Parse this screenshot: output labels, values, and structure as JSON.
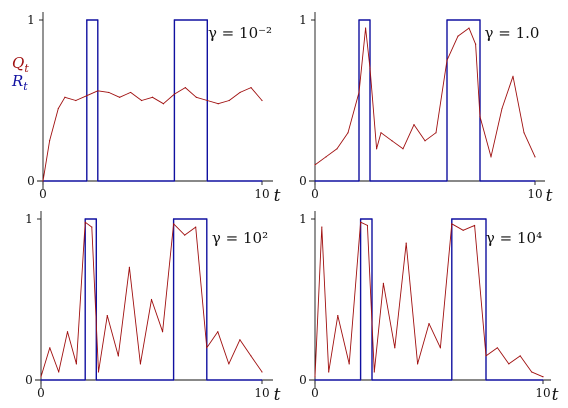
{
  "figure": {
    "legend": {
      "q_label": "Q",
      "q_sub": "t",
      "r_label": "R",
      "r_sub": "t"
    }
  },
  "colors": {
    "Q": "#a01010",
    "R": "#1010a0",
    "axis": "#111111"
  },
  "chart_data": [
    {
      "type": "line",
      "gamma_label": "γ = 10⁻²",
      "xlabel": "t",
      "xlim": [
        0,
        10
      ],
      "ylim": [
        0,
        1
      ],
      "x_ticks": [
        "0",
        "10"
      ],
      "y_ticks": [
        "0",
        "1"
      ],
      "series": [
        {
          "name": "R",
          "x": [
            0,
            2,
            2,
            2.5,
            2.5,
            6,
            6,
            7.5,
            7.5,
            10
          ],
          "y": [
            0,
            0,
            1,
            1,
            0,
            0,
            1,
            1,
            0,
            0
          ]
        },
        {
          "name": "Q",
          "x": [
            0,
            0.3,
            0.7,
            1,
            1.5,
            2,
            2.5,
            3,
            3.5,
            4,
            4.5,
            5,
            5.5,
            6,
            6.5,
            7,
            7.5,
            8,
            8.5,
            9,
            9.5,
            10
          ],
          "y": [
            0,
            0.25,
            0.45,
            0.52,
            0.5,
            0.53,
            0.56,
            0.55,
            0.52,
            0.55,
            0.5,
            0.52,
            0.48,
            0.54,
            0.58,
            0.52,
            0.5,
            0.48,
            0.5,
            0.55,
            0.58,
            0.5
          ]
        }
      ]
    },
    {
      "type": "line",
      "gamma_label": "γ = 1.0",
      "xlabel": "t",
      "xlim": [
        0,
        10
      ],
      "ylim": [
        0,
        1
      ],
      "x_ticks": [
        "0",
        "10"
      ],
      "y_ticks": [
        "0",
        "1"
      ],
      "series": [
        {
          "name": "R",
          "x": [
            0,
            2,
            2,
            2.5,
            2.5,
            6,
            6,
            7.5,
            7.5,
            10
          ],
          "y": [
            0,
            0,
            1,
            1,
            0,
            0,
            1,
            1,
            0,
            0
          ]
        },
        {
          "name": "Q",
          "x": [
            0,
            0.5,
            1,
            1.5,
            2,
            2.3,
            2.5,
            2.8,
            3,
            3.5,
            4,
            4.5,
            5,
            5.5,
            6,
            6.5,
            7,
            7.3,
            7.5,
            8,
            8.5,
            9,
            9.5,
            10
          ],
          "y": [
            0.1,
            0.15,
            0.2,
            0.3,
            0.55,
            0.95,
            0.7,
            0.2,
            0.3,
            0.25,
            0.2,
            0.35,
            0.25,
            0.3,
            0.75,
            0.9,
            0.95,
            0.85,
            0.4,
            0.15,
            0.45,
            0.65,
            0.3,
            0.15
          ]
        }
      ]
    },
    {
      "type": "line",
      "gamma_label": "γ = 10²",
      "xlabel": "t",
      "xlim": [
        0,
        10
      ],
      "ylim": [
        0,
        1
      ],
      "x_ticks": [
        "0",
        "10"
      ],
      "y_ticks": [
        "0",
        "1"
      ],
      "series": [
        {
          "name": "R",
          "x": [
            0,
            2,
            2,
            2.5,
            2.5,
            6,
            6,
            7.5,
            7.5,
            10
          ],
          "y": [
            0,
            0,
            1,
            1,
            0,
            0,
            1,
            1,
            0,
            0
          ]
        },
        {
          "name": "Q",
          "x": [
            0,
            0.4,
            0.8,
            1.2,
            1.6,
            2.0,
            2.3,
            2.6,
            3.0,
            3.5,
            4.0,
            4.5,
            5.0,
            5.5,
            6.0,
            6.5,
            7.0,
            7.5,
            8.0,
            8.5,
            9.0,
            9.5,
            10
          ],
          "y": [
            0.02,
            0.2,
            0.05,
            0.3,
            0.1,
            0.98,
            0.95,
            0.05,
            0.4,
            0.15,
            0.7,
            0.1,
            0.5,
            0.3,
            0.97,
            0.9,
            0.95,
            0.2,
            0.3,
            0.1,
            0.25,
            0.15,
            0.05
          ]
        }
      ]
    },
    {
      "type": "line",
      "gamma_label": "γ = 10⁴",
      "xlabel": "t",
      "xlim": [
        0,
        10
      ],
      "ylim": [
        0,
        1
      ],
      "x_ticks": [
        "0",
        "10"
      ],
      "y_ticks": [
        "0",
        "1"
      ],
      "series": [
        {
          "name": "R",
          "x": [
            0,
            2,
            2,
            2.5,
            2.5,
            6,
            6,
            7.5,
            7.5,
            10
          ],
          "y": [
            0,
            0,
            1,
            1,
            0,
            0,
            1,
            1,
            0,
            0
          ]
        },
        {
          "name": "Q",
          "x": [
            0,
            0.3,
            0.6,
            1.0,
            1.5,
            2.0,
            2.3,
            2.6,
            3.0,
            3.5,
            4.0,
            4.5,
            5.0,
            5.5,
            6.0,
            6.5,
            7.0,
            7.5,
            8.0,
            8.5,
            9.0,
            9.5,
            10
          ],
          "y": [
            0.02,
            0.95,
            0.05,
            0.4,
            0.1,
            0.98,
            0.96,
            0.05,
            0.6,
            0.2,
            0.85,
            0.1,
            0.35,
            0.2,
            0.97,
            0.93,
            0.96,
            0.15,
            0.2,
            0.1,
            0.15,
            0.05,
            0.02
          ]
        }
      ]
    }
  ]
}
